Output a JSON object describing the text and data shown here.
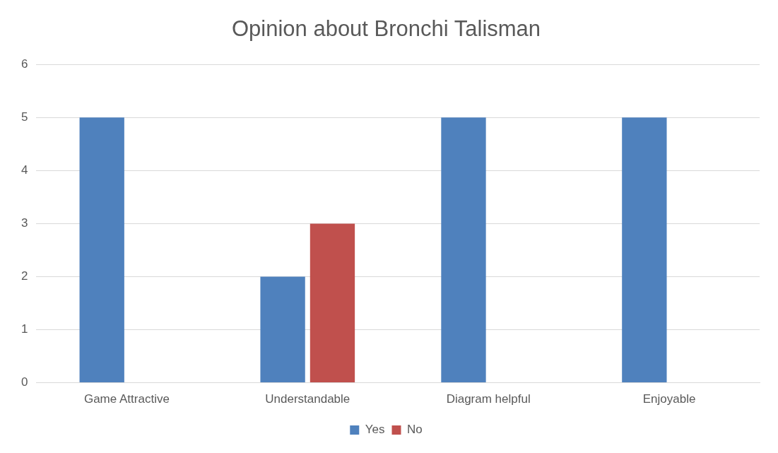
{
  "chart_data": {
    "type": "bar",
    "title": "Opinion about Bronchi Talisman",
    "categories": [
      "Game Attractive",
      "Understandable",
      "Diagram helpful",
      "Enjoyable"
    ],
    "series": [
      {
        "name": "Yes",
        "color": "#4f81bd",
        "values": [
          5,
          2,
          5,
          5
        ]
      },
      {
        "name": "No",
        "color": "#c0504d",
        "values": [
          0,
          3,
          0,
          0
        ]
      }
    ],
    "ylim": [
      0,
      6
    ],
    "yticks": [
      0,
      1,
      2,
      3,
      4,
      5,
      6
    ],
    "grid": "y",
    "legend": "bottom"
  }
}
